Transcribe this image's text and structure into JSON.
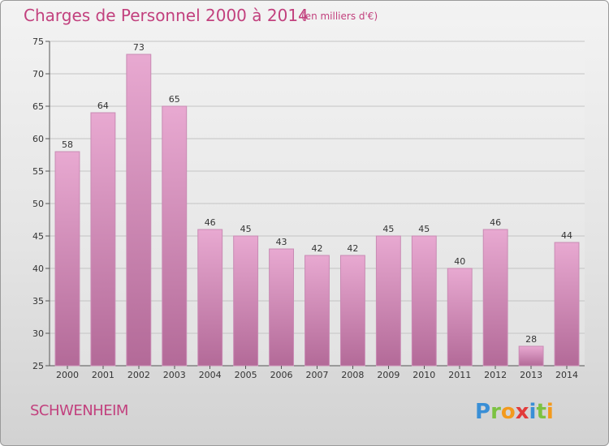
{
  "header": {
    "title": "Charges de Personnel 2000 à 2014",
    "unit": "(en milliers d'€)"
  },
  "footer": {
    "commune": "SCHWENHEIM",
    "logo_text": "Proxiti"
  },
  "colors": {
    "title": "#c2417e",
    "bar_top": "#e8a9d1",
    "bar_bottom": "#b36a98",
    "bar_edge": "#c98bb4"
  },
  "chart_data": {
    "type": "bar",
    "categories": [
      "2000",
      "2001",
      "2002",
      "2003",
      "2004",
      "2005",
      "2006",
      "2007",
      "2008",
      "2009",
      "2010",
      "2011",
      "2012",
      "2013",
      "2014"
    ],
    "values": [
      58,
      64,
      73,
      65,
      46,
      45,
      43,
      42,
      42,
      45,
      45,
      40,
      46,
      28,
      44
    ],
    "ylim": [
      25,
      75
    ],
    "yticks": [
      25,
      30,
      35,
      40,
      45,
      50,
      55,
      60,
      65,
      70,
      75
    ],
    "grid": true
  }
}
